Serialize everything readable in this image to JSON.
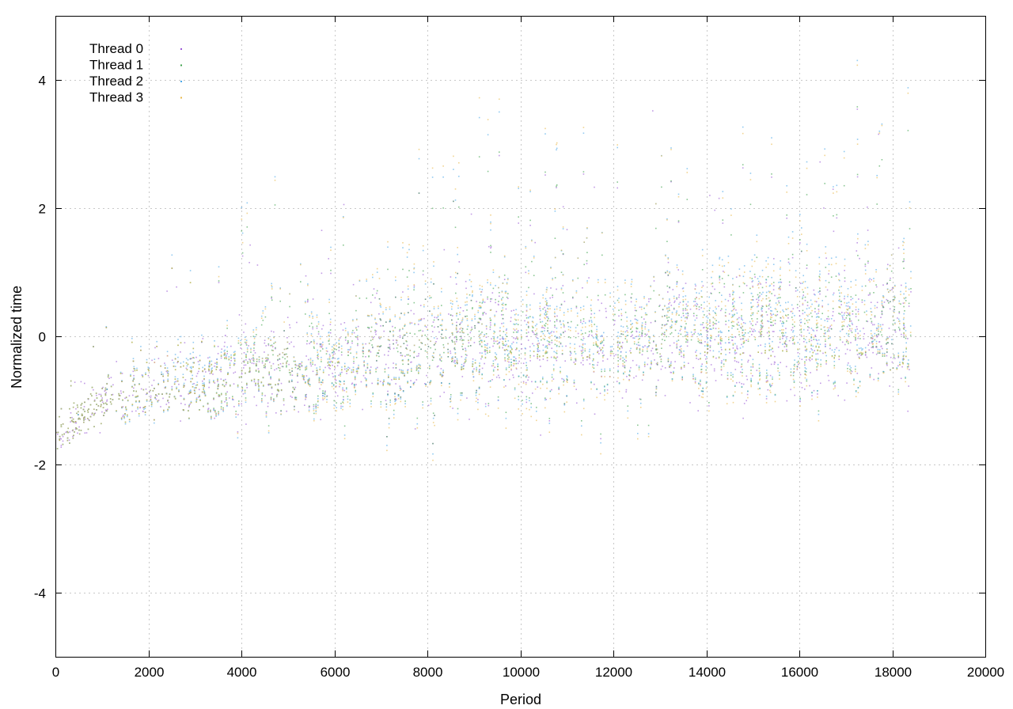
{
  "chart_data": {
    "type": "scatter",
    "title": "",
    "xlabel": "Period",
    "ylabel": "Normalized time",
    "xlim": [
      0,
      20000
    ],
    "ylim": [
      -5,
      5
    ],
    "xticks": [
      0,
      2000,
      4000,
      6000,
      8000,
      10000,
      12000,
      14000,
      16000,
      18000,
      20000
    ],
    "yticks": [
      -4,
      -2,
      0,
      2,
      4
    ],
    "xtick_labels": [
      "0",
      "2000",
      "4000",
      "6000",
      "8000",
      "10000",
      "12000",
      "14000",
      "16000",
      "18000",
      "20000"
    ],
    "ytick_labels": [
      "-4",
      "-2",
      "0",
      "2",
      "4"
    ],
    "grid": true,
    "legend_position": "top-left",
    "series": [
      {
        "name": "Thread 0",
        "color": "#9b59d6",
        "x": [
          0,
          500,
          1000,
          2000,
          3000,
          4000,
          5000,
          6000,
          7000,
          8000,
          9000,
          10000,
          11000,
          12000,
          13000,
          14000,
          15000,
          16000,
          17000,
          18000,
          18400
        ],
        "y": [
          -1.6,
          -1.3,
          -1.0,
          -0.8,
          -0.7,
          -0.6,
          -0.5,
          -0.5,
          -0.3,
          -0.2,
          -0.1,
          -0.2,
          -0.1,
          -0.2,
          0.0,
          0.0,
          0.0,
          0.0,
          0.0,
          0.1,
          0.0
        ],
        "spread": [
          0.15,
          0.25,
          0.35,
          0.45,
          0.55,
          0.6,
          0.65,
          0.7,
          0.8,
          0.85,
          0.85,
          0.85,
          0.85,
          0.85,
          0.9,
          0.9,
          0.9,
          0.9,
          0.9,
          0.9,
          0.9
        ]
      },
      {
        "name": "Thread 1",
        "color": "#3fa34d",
        "x": [
          0,
          500,
          1000,
          2000,
          3000,
          4000,
          5000,
          6000,
          7000,
          8000,
          9000,
          10000,
          11000,
          12000,
          13000,
          14000,
          15000,
          16000,
          17000,
          18000,
          18400
        ],
        "y": [
          -1.6,
          -1.3,
          -1.0,
          -0.8,
          -0.7,
          -0.55,
          -0.5,
          -0.45,
          -0.3,
          -0.2,
          -0.1,
          -0.1,
          -0.1,
          -0.1,
          0.0,
          0.05,
          0.05,
          0.05,
          0.05,
          0.1,
          0.05
        ],
        "spread": [
          0.15,
          0.25,
          0.35,
          0.45,
          0.55,
          0.6,
          0.65,
          0.7,
          0.8,
          0.85,
          0.85,
          0.85,
          0.85,
          0.85,
          0.9,
          0.9,
          0.9,
          0.9,
          0.9,
          0.9,
          0.9
        ]
      },
      {
        "name": "Thread 2",
        "color": "#4aa8e8",
        "x": [
          0,
          500,
          1000,
          2000,
          3000,
          4000,
          5000,
          6000,
          7000,
          8000,
          9000,
          10000,
          11000,
          12000,
          13000,
          14000,
          15000,
          16000,
          17000,
          18000,
          18400
        ],
        "y": [
          -1.6,
          -1.3,
          -1.0,
          -0.8,
          -0.65,
          -0.55,
          -0.45,
          -0.4,
          -0.2,
          -0.1,
          0.0,
          0.0,
          0.05,
          0.0,
          0.1,
          0.2,
          0.2,
          0.2,
          0.2,
          0.2,
          0.2
        ],
        "spread": [
          0.15,
          0.25,
          0.35,
          0.5,
          0.6,
          0.7,
          0.75,
          0.85,
          0.95,
          1.0,
          1.0,
          1.0,
          1.0,
          1.0,
          1.05,
          1.05,
          1.05,
          1.05,
          1.05,
          1.05,
          1.05
        ]
      },
      {
        "name": "Thread 3",
        "color": "#e8b84a",
        "x": [
          0,
          500,
          1000,
          2000,
          3000,
          4000,
          5000,
          6000,
          7000,
          8000,
          9000,
          10000,
          11000,
          12000,
          13000,
          14000,
          15000,
          16000,
          17000,
          18000,
          18400
        ],
        "y": [
          -1.6,
          -1.3,
          -1.0,
          -0.8,
          -0.7,
          -0.55,
          -0.45,
          -0.45,
          -0.2,
          -0.1,
          0.0,
          -0.1,
          0.0,
          -0.1,
          0.1,
          0.1,
          0.1,
          0.1,
          0.1,
          0.2,
          0.1
        ],
        "spread": [
          0.15,
          0.25,
          0.35,
          0.45,
          0.55,
          0.65,
          0.75,
          0.85,
          1.0,
          1.05,
          1.1,
          1.05,
          1.05,
          1.05,
          1.05,
          1.05,
          1.05,
          1.05,
          1.05,
          1.05,
          1.05
        ]
      }
    ]
  }
}
